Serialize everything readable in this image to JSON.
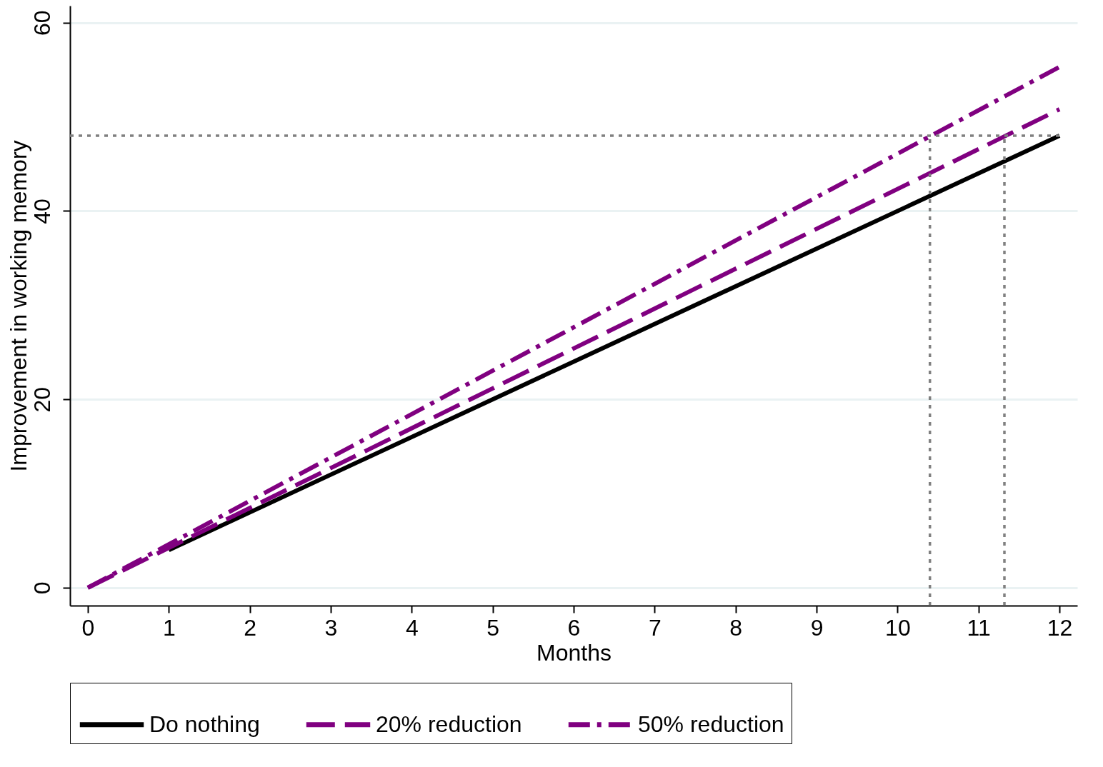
{
  "chart_data": {
    "type": "line",
    "xlabel": "Months",
    "ylabel": "Improvement in working memory",
    "xlim": [
      -0.22,
      12.22
    ],
    "ylim": [
      -1.9,
      61.8
    ],
    "xticks": [
      0,
      1,
      2,
      3,
      4,
      5,
      6,
      7,
      8,
      9,
      10,
      11,
      12
    ],
    "yticks": [
      0,
      20,
      40,
      60
    ],
    "grid": "y",
    "legend": "bottom",
    "marker": "none",
    "series": [
      {
        "name": "Do nothing",
        "color": "#000000",
        "line_style": "solid",
        "x": [
          1,
          12
        ],
        "values": [
          4,
          48
        ]
      },
      {
        "name": "20% reduction",
        "color": "#800080",
        "line_style": "dashed",
        "x": [
          0,
          12
        ],
        "values": [
          0,
          50.8
        ]
      },
      {
        "name": "50% reduction",
        "color": "#800080",
        "line_style": "dashdot",
        "x": [
          0,
          12
        ],
        "values": [
          0,
          55.3
        ]
      },
      {
        "color": "#808080",
        "line_style": "dotted",
        "x": [
          -0.22,
          12
        ],
        "values": [
          48,
          48
        ]
      },
      {
        "color": "#808080",
        "line_style": "dotted",
        "x": [
          10.4,
          10.4
        ],
        "values": [
          -1.9,
          48
        ]
      },
      {
        "color": "#808080",
        "line_style": "dotted",
        "x": [
          11.32,
          11.32
        ],
        "values": [
          -1.9,
          48
        ]
      }
    ]
  }
}
